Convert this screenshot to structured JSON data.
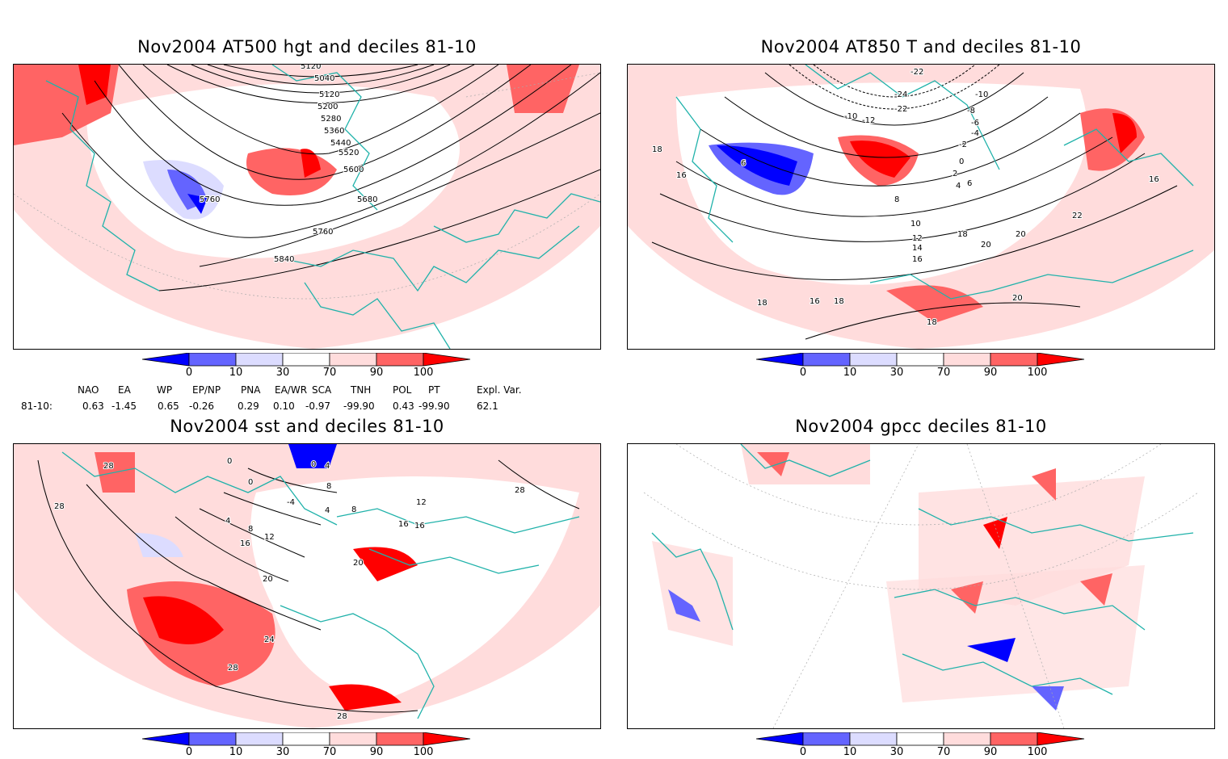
{
  "panels": [
    {
      "id": "hgt500",
      "title": "Nov2004 AT500 hgt and deciles 81-10",
      "contour_labels": [
        "5120",
        "5040",
        "5120",
        "5200",
        "5280",
        "5360",
        "5440",
        "5520",
        "5600",
        "5680",
        "5760",
        "5760",
        "5840"
      ]
    },
    {
      "id": "t850",
      "title": "Nov2004 AT850 T and deciles 81-10",
      "contour_labels": [
        "-22",
        "-24",
        "-22",
        "-10",
        "-12",
        "-10",
        "-8",
        "-6",
        "-4",
        "-2",
        "0",
        "2",
        "4",
        "6",
        "6",
        "8",
        "10",
        "12",
        "14",
        "16",
        "18",
        "20",
        "20",
        "22",
        "16",
        "18",
        "16",
        "18",
        "18",
        "16",
        "20",
        "18"
      ]
    },
    {
      "id": "sst",
      "title": "Nov2004 sst and deciles 81-10",
      "contour_labels": [
        "28",
        "28",
        "0",
        "0",
        "0",
        "-4",
        "4",
        "8",
        "12",
        "16",
        "20",
        "24",
        "28",
        "28",
        "4",
        "8",
        "4",
        "8",
        "12",
        "16",
        "16",
        "20",
        "28"
      ]
    },
    {
      "id": "gpcc",
      "title": "Nov2004 gpcc deciles 81-10",
      "contour_labels": []
    }
  ],
  "colorbar": {
    "labels": [
      "0",
      "10",
      "30",
      "70",
      "90",
      "100"
    ],
    "colors": [
      "#0000ff",
      "#6464ff",
      "#dcdcff",
      "#ffffff",
      "#ffdcdc",
      "#ff6464",
      "#ff0000"
    ]
  },
  "indices": {
    "headers": [
      "NAO",
      "EA",
      "WP",
      "EP/NP",
      "PNA",
      "EA/WR",
      "SCA",
      "TNH",
      "POL",
      "PT",
      "Expl. Var."
    ],
    "row_label": "81-10:",
    "values": [
      "0.63",
      "-1.45",
      "0.65",
      "-0.26",
      "0.29",
      "0.10",
      "-0.97",
      "-99.90",
      "0.43",
      "-99.90",
      "62.1"
    ]
  }
}
